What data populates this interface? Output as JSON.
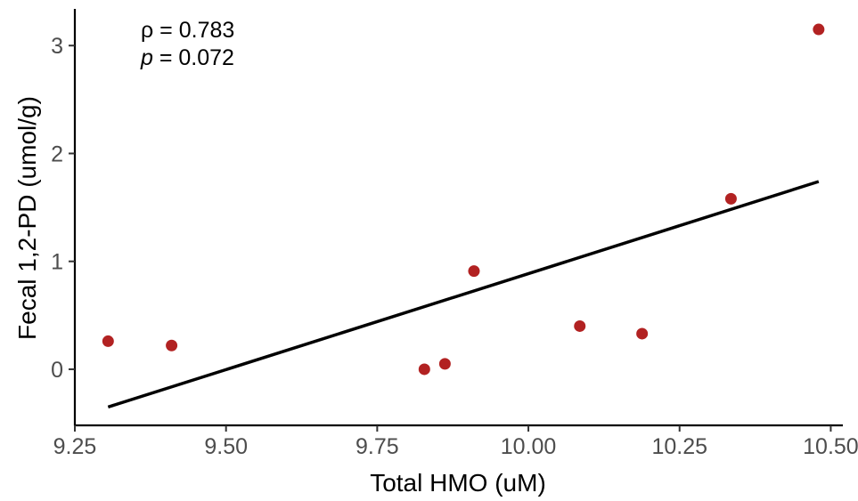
{
  "chart_data": {
    "type": "scatter",
    "title": "",
    "xlabel": "Total HMO (uM)",
    "ylabel": "Fecal 1,2-PD (umol/g)",
    "xlim": [
      9.25,
      10.52
    ],
    "ylim": [
      -0.52,
      3.34
    ],
    "x_ticks": [
      9.25,
      9.5,
      9.75,
      10.0,
      10.25,
      10.5
    ],
    "x_tick_labels": [
      "9.25",
      "9.50",
      "9.75",
      "10.00",
      "10.25",
      "10.50"
    ],
    "y_ticks": [
      0,
      1,
      2,
      3
    ],
    "y_tick_labels": [
      "0",
      "1",
      "2",
      "3"
    ],
    "grid": false,
    "point_color": "#b22222",
    "line_color": "#000000",
    "points": [
      {
        "x": 9.305,
        "y": 0.26
      },
      {
        "x": 9.41,
        "y": 0.22
      },
      {
        "x": 9.828,
        "y": 0.0
      },
      {
        "x": 9.862,
        "y": 0.05
      },
      {
        "x": 9.91,
        "y": 0.91
      },
      {
        "x": 10.085,
        "y": 0.4
      },
      {
        "x": 10.188,
        "y": 0.33
      },
      {
        "x": 10.335,
        "y": 1.58
      },
      {
        "x": 10.48,
        "y": 3.15
      }
    ],
    "fit_line": {
      "x": [
        9.305,
        10.48
      ],
      "y": [
        -0.35,
        1.74
      ]
    },
    "annotations": {
      "rho_symbol": "ρ",
      "rho_text": " = 0.783",
      "p_symbol": "p",
      "p_text": " = 0.072"
    }
  }
}
